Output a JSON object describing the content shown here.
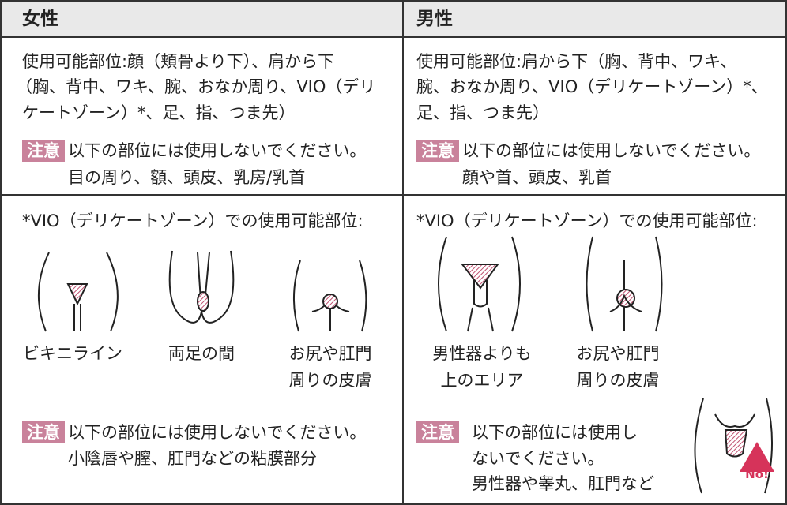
{
  "table": {
    "header": [
      "女性",
      "男性"
    ],
    "usage": [
      {
        "lines": [
          "使用可能部位:顔（頬骨より下）、肩から下",
          "（胸、背中、ワキ、腕、おなか周り、VIO（デリ",
          "ケートゾーン）*、足、指、つま先）"
        ],
        "caution_label": "注意",
        "caution_lines": [
          "以下の部位には使用しないでください。",
          "目の周り、額、頭皮、乳房/乳首"
        ]
      },
      {
        "lines": [
          "使用可能部位:肩から下（胸、背中、ワキ、",
          "腕、おなか周り、VIO（デリケートゾーン）*、",
          "足、指、つま先）"
        ],
        "caution_label": "注意",
        "caution_lines": [
          "以下の部位には使用しないでください。",
          "顔や首、頭皮、乳首"
        ]
      }
    ],
    "vio": [
      {
        "heading": "*VIO（デリケートゾーン）での使用可能部位:",
        "areas": [
          [
            "ビキニライン"
          ],
          [
            "両足の間"
          ],
          [
            "お尻や肛門",
            "周りの皮膚"
          ]
        ],
        "caution_label": "注意",
        "caution_lines": [
          "以下の部位には使用しないでください。",
          "小陰唇や膣、肛門などの粘膜部分"
        ]
      },
      {
        "heading": "*VIO（デリケートゾーン）での使用可能部位:",
        "areas": [
          [
            "男性器よりも",
            "上のエリア"
          ],
          [
            "お尻や肛門",
            "周りの皮膚"
          ]
        ],
        "caution_label": "注意",
        "caution_lines": [
          "以下の部位には使用し",
          "ないでください。",
          "男性器や睾丸、肛門など"
        ],
        "badge": "No!"
      }
    ]
  }
}
